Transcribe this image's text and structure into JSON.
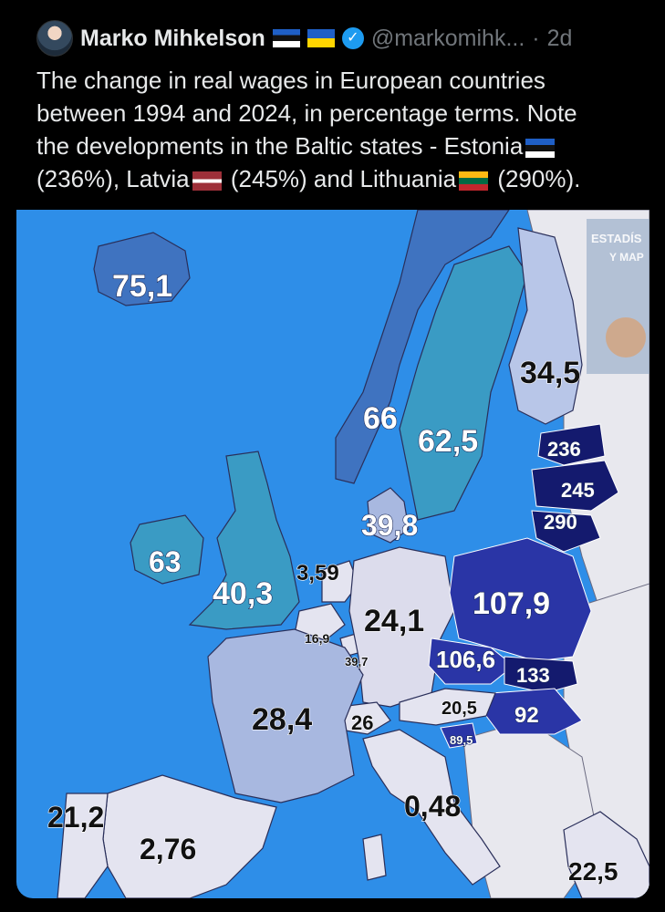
{
  "tweet": {
    "author": "Marko Mihkelson",
    "handle": "@markomihk...",
    "separator": "·",
    "time": "2d",
    "text": {
      "line1": "The change in real wages in European countries",
      "line2": "between 1994 and 2024, in percentage terms. Note",
      "line3": "the developments in the Baltic states - Estonia",
      "p_estonia": "(236%), Latvia",
      "p_latvia": "(245%) and Lithuania",
      "p_lithuania": "(290%)."
    },
    "icons": [
      "avatar",
      "estonia-flag",
      "ukraine-flag",
      "verified-badge",
      "latvia-flag",
      "lithuania-flag"
    ]
  },
  "map": {
    "watermark": [
      "ESTADÍS",
      "Y MAP"
    ],
    "colors": {
      "sea": "#2e8ee8",
      "land_gray": "#e8e8ee",
      "very_light": "#dcdcec",
      "light": "#b8c6e8",
      "mid_light": "#a8b8e0",
      "teal": "#3a9bc4",
      "mid": "#3f73c0",
      "dark": "#2a35a6",
      "very_dark": "#141a6e"
    },
    "labels": {
      "iceland": "75,1",
      "norway": "66",
      "sweden": "62,5",
      "finland": "34,5",
      "estonia": "236",
      "latvia": "245",
      "lithuania": "290",
      "denmark": "39,8",
      "ireland": "63",
      "uk": "40,3",
      "netherlands": "3,59",
      "belgium": "16,9",
      "luxembourg": "39,7",
      "germany": "24,1",
      "poland": "107,9",
      "czechia": "106,6",
      "slovakia": "133",
      "hungary": "92",
      "austria": "20,5",
      "slovenia": "89,5",
      "switzerland": "26",
      "france": "28,4",
      "portugal": "21,2",
      "spain": "2,76",
      "italy": "0,48",
      "greece": "22,5"
    }
  }
}
